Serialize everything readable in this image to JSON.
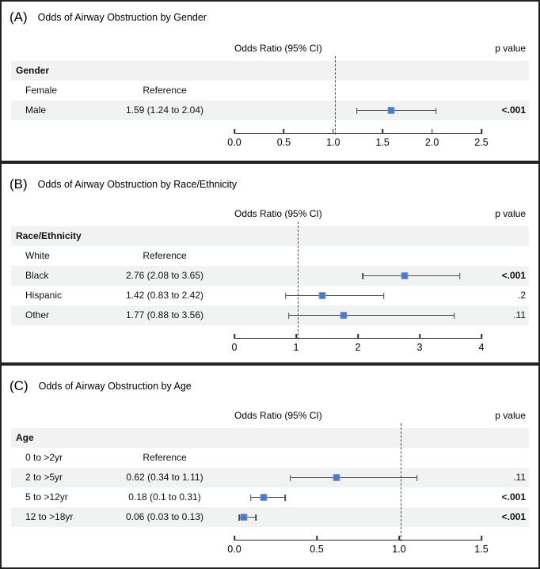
{
  "colors": {
    "marker": "#4b7ac8",
    "marker_border": "#7d9cd6",
    "ci_line": "#4d4d4d",
    "row_shade": "#f1f3f2",
    "refline": "#4a4a4a",
    "panel_border": "#222222"
  },
  "chart_data": [
    {
      "type": "scatter",
      "variant": "forest-plot",
      "panel_label": "(A)",
      "title": "Odds of Airway Obstruction by Gender",
      "col_headers": {
        "estimate": "Odds Ratio (95% CI)",
        "p": "p value"
      },
      "group": "Gender",
      "rows": [
        {
          "label": "Female",
          "value": "Reference"
        },
        {
          "label": "Male",
          "value": "1.59 (1.24 to 2.04)",
          "or": 1.59,
          "ci_low": 1.24,
          "ci_high": 2.04,
          "p": "<.001",
          "p_bold": true
        }
      ],
      "axis": {
        "min": 0,
        "max": 2.5,
        "tick_values": [
          0,
          0.5,
          1,
          1.5,
          2,
          2.5
        ],
        "tick_labels": [
          "0.0",
          "0.5",
          "1.0",
          "1.5",
          "2.0",
          "2.5"
        ],
        "refline": 1.0
      },
      "legend": "none",
      "grid": "off"
    },
    {
      "type": "scatter",
      "variant": "forest-plot",
      "panel_label": "(B)",
      "title": "Odds of Airway Obstruction by Race/Ethnicity",
      "col_headers": {
        "estimate": "Odds Ratio (95% CI)",
        "p": "p value"
      },
      "group": "Race/Ethnicity",
      "rows": [
        {
          "label": "White",
          "value": "Reference"
        },
        {
          "label": "Black",
          "value": "2.76 (2.08 to 3.65)",
          "or": 2.76,
          "ci_low": 2.08,
          "ci_high": 3.65,
          "p": "<.001",
          "p_bold": true
        },
        {
          "label": "Hispanic",
          "value": "1.42 (0.83 to 2.42)",
          "or": 1.42,
          "ci_low": 0.83,
          "ci_high": 2.42,
          "p": ".2",
          "p_bold": false
        },
        {
          "label": "Other",
          "value": "1.77 (0.88 to 3.56)",
          "or": 1.77,
          "ci_low": 0.88,
          "ci_high": 3.56,
          "p": ".11",
          "p_bold": false
        }
      ],
      "axis": {
        "min": 0,
        "max": 4,
        "tick_values": [
          0,
          1,
          2,
          3,
          4
        ],
        "tick_labels": [
          "0",
          "1",
          "2",
          "3",
          "4"
        ],
        "refline": 1.0
      },
      "legend": "none",
      "grid": "off"
    },
    {
      "type": "scatter",
      "variant": "forest-plot",
      "panel_label": "(C)",
      "title": "Odds of Airway Obstruction by Age",
      "col_headers": {
        "estimate": "Odds Ratio (95% CI)",
        "p": "p value"
      },
      "group": "Age",
      "rows": [
        {
          "label": "0 to >2yr",
          "value": "Reference"
        },
        {
          "label": "2 to >5yr",
          "value": "0.62 (0.34 to 1.11)",
          "or": 0.62,
          "ci_low": 0.34,
          "ci_high": 1.11,
          "p": ".11",
          "p_bold": false
        },
        {
          "label": "5 to >12yr",
          "value": "0.18 (0.1 to 0.31)",
          "or": 0.18,
          "ci_low": 0.1,
          "ci_high": 0.31,
          "p": "<.001",
          "p_bold": true
        },
        {
          "label": "12 to >18yr",
          "value": "0.06 (0.03 to 0.13)",
          "or": 0.06,
          "ci_low": 0.03,
          "ci_high": 0.13,
          "p": "<.001",
          "p_bold": true
        }
      ],
      "axis": {
        "min": 0,
        "max": 1.5,
        "tick_values": [
          0,
          0.5,
          1,
          1.5
        ],
        "tick_labels": [
          "0.0",
          "0.5",
          "1.0",
          "1.5"
        ],
        "refline": 1.0
      },
      "legend": "none",
      "grid": "off"
    }
  ]
}
